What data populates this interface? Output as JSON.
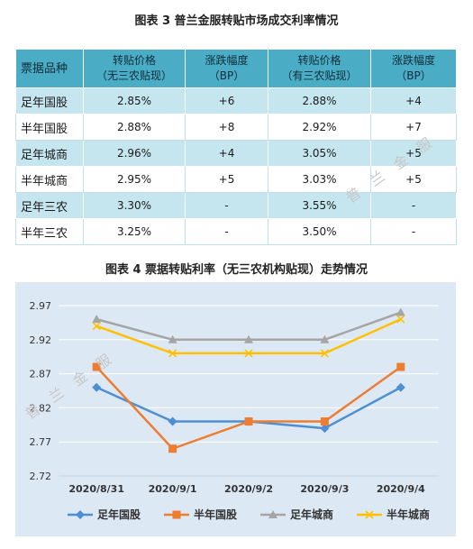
{
  "table": {
    "title": "图表 3 普兰金服转贴市场成交利率情况",
    "headers": [
      [
        "票据品种"
      ],
      [
        "转贴价格",
        "（无三农贴现）"
      ],
      [
        "涨跌幅度",
        "（BP）"
      ],
      [
        "转贴价格",
        "（有三农贴现）"
      ],
      [
        "涨跌幅度",
        "（BP）"
      ]
    ],
    "rows": [
      [
        "足年国股",
        "2.85%",
        "+6",
        "2.88%",
        "+4"
      ],
      [
        "半年国股",
        "2.88%",
        "+8",
        "2.92%",
        "+7"
      ],
      [
        "足年城商",
        "2.96%",
        "+4",
        "3.05%",
        "+5"
      ],
      [
        "半年城商",
        "2.95%",
        "+5",
        "3.03%",
        "+5"
      ],
      [
        "足年三农",
        "3.30%",
        "-",
        "3.55%",
        "-"
      ],
      [
        "半年三农",
        "3.25%",
        "-",
        "3.50%",
        "-"
      ]
    ]
  },
  "watermark": "普兰金服",
  "chart_data": {
    "type": "line",
    "title": "图表 4 票据转贴利率（无三农机构贴现）走势情况",
    "categories": [
      "2020/8/31",
      "2020/9/1",
      "2020/9/2",
      "2020/9/3",
      "2020/9/4"
    ],
    "series": [
      {
        "name": "足年国股",
        "values": [
          2.85,
          2.8,
          2.8,
          2.79,
          2.85
        ],
        "color": "#4e8fd3",
        "marker": "diamond"
      },
      {
        "name": "半年国股",
        "values": [
          2.88,
          2.76,
          2.8,
          2.8,
          2.88
        ],
        "color": "#ed7d31",
        "marker": "square"
      },
      {
        "name": "足年城商",
        "values": [
          2.95,
          2.92,
          2.92,
          2.92,
          2.96
        ],
        "color": "#a5a5a5",
        "marker": "triangle"
      },
      {
        "name": "半年城商",
        "values": [
          2.94,
          2.9,
          2.9,
          2.9,
          2.95
        ],
        "color": "#ffc000",
        "marker": "x"
      }
    ],
    "yticks": [
      "2.72",
      "2.77",
      "2.82",
      "2.87",
      "2.92",
      "2.97"
    ],
    "ylim": [
      2.72,
      2.97
    ],
    "grid": true,
    "legend": "bottom",
    "background": "#dde8f5",
    "xlabel": "",
    "ylabel": ""
  }
}
